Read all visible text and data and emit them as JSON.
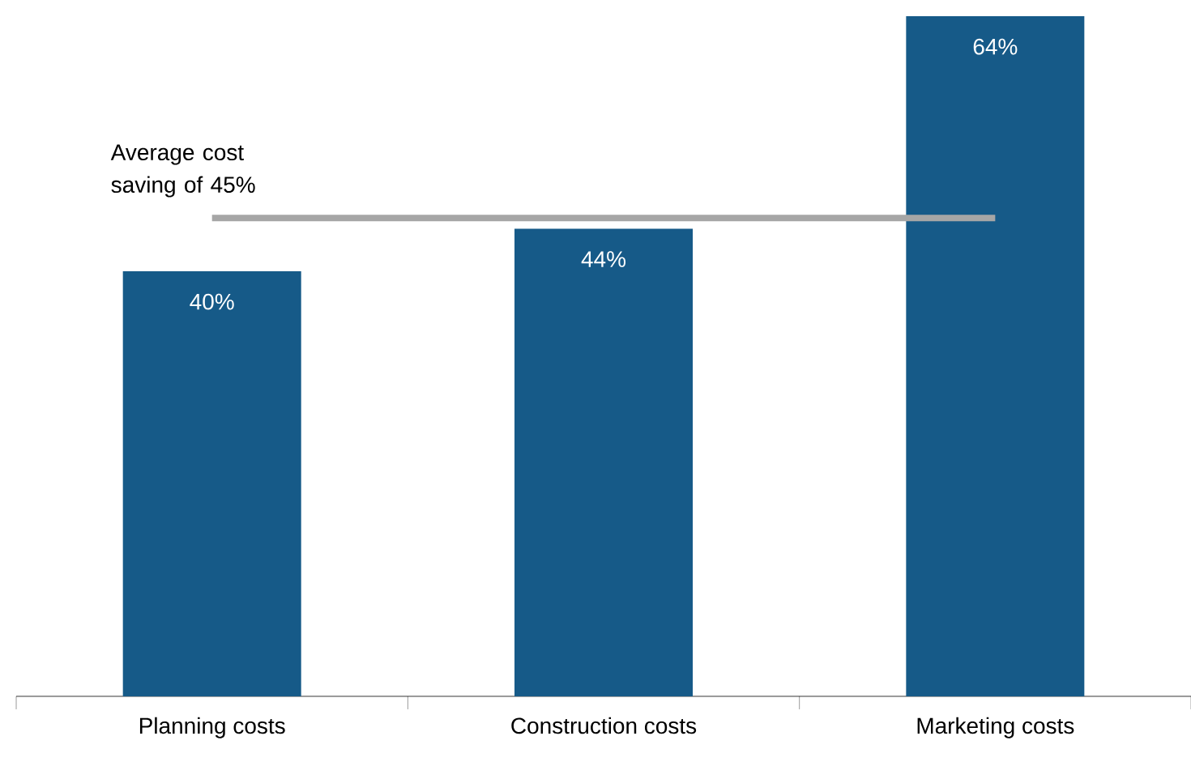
{
  "chart_data": {
    "type": "bar",
    "categories": [
      "Planning costs",
      "Construction costs",
      "Marketing costs"
    ],
    "values": [
      40,
      44,
      64
    ],
    "color": "#165a88",
    "value_labels": [
      "40%",
      "44%",
      "64%"
    ],
    "ylim": [
      0,
      64
    ],
    "tick_labels": "x",
    "ref_lines": [
      {
        "axis": "y",
        "value": 45,
        "label": "Average cost saving of 45%",
        "color": "#a6a6a6"
      }
    ]
  }
}
